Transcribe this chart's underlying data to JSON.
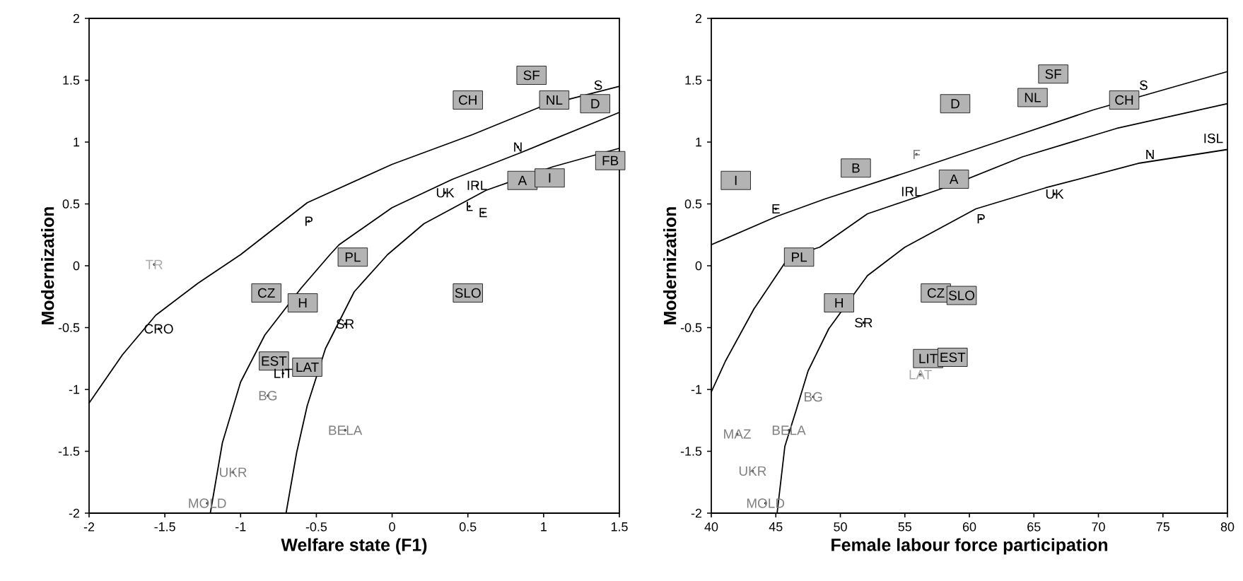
{
  "chart_data": [
    {
      "type": "scatter",
      "xlabel": "Welfare state (F1)",
      "ylabel": "Modernization",
      "xlim": [
        -2,
        1.5
      ],
      "ylim": [
        -2,
        2
      ],
      "xticks": [
        -2,
        -1.5,
        -1,
        -0.5,
        0,
        0.5,
        1,
        1.5
      ],
      "yticks": [
        -2,
        -1.5,
        -1,
        -0.5,
        0,
        0.5,
        1,
        1.5,
        2
      ],
      "series": [
        {
          "type": "line",
          "color": "#000000",
          "line_style": "solid",
          "marker": "none",
          "x": [
            -2,
            -1.78,
            -1.56,
            -1.28,
            -1.0,
            -0.56,
            0.0,
            0.53,
            0.99,
            1.5
          ],
          "values": [
            -1.11,
            -0.72,
            -0.4,
            -0.14,
            0.09,
            0.51,
            0.82,
            1.06,
            1.29,
            1.45
          ]
        },
        {
          "type": "line",
          "color": "#000000",
          "line_style": "solid",
          "marker": "none",
          "x": [
            -1.2,
            -1.12,
            -1.0,
            -0.84,
            -0.6,
            -0.41,
            -0.35,
            0.0,
            0.4,
            0.84,
            1.5
          ],
          "values": [
            -2,
            -1.43,
            -0.94,
            -0.56,
            -0.18,
            0.09,
            0.17,
            0.47,
            0.7,
            0.91,
            1.24
          ]
        },
        {
          "type": "line",
          "color": "#000000",
          "line_style": "solid",
          "marker": "none",
          "x": [
            -0.7,
            -0.63,
            -0.56,
            -0.44,
            -0.25,
            -0.03,
            0.21,
            0.62,
            1.06,
            1.5
          ],
          "values": [
            -2,
            -1.51,
            -1.13,
            -0.67,
            -0.21,
            0.09,
            0.34,
            0.61,
            0.8,
            0.95
          ]
        },
        {
          "type": "scatter",
          "marker": "square",
          "color": "#b3b3b3",
          "value_labels": [
            "SF",
            "CH",
            "NL",
            "D",
            "FB",
            "A",
            "I",
            "PL",
            "CZ",
            "H",
            "SLO",
            "EST",
            "LAT"
          ],
          "x": [
            0.92,
            0.5,
            1.07,
            1.34,
            1.44,
            0.86,
            1.04,
            -0.26,
            -0.83,
            -0.59,
            0.5,
            -0.78,
            -0.56
          ],
          "values": [
            1.54,
            1.34,
            1.34,
            1.31,
            0.85,
            0.69,
            0.71,
            0.07,
            -0.22,
            -0.3,
            -0.22,
            -0.77,
            -0.82
          ]
        },
        {
          "type": "scatter",
          "marker": "circle",
          "color": "#000000",
          "value_labels": [
            "S",
            "N",
            "UK",
            "IRL",
            "L",
            "E",
            "P",
            "CRO",
            "SR",
            "LIT"
          ],
          "x": [
            1.36,
            0.83,
            0.35,
            0.56,
            0.51,
            0.6,
            -0.55,
            -1.54,
            -0.31,
            -0.72
          ],
          "values": [
            1.46,
            0.96,
            0.59,
            0.65,
            0.48,
            0.43,
            0.36,
            -0.51,
            -0.47,
            -0.87
          ]
        },
        {
          "type": "scatter",
          "marker": "circle",
          "color": "#808080",
          "value_labels": [
            "BG",
            "BELA",
            "UKR",
            "MOLD"
          ],
          "x": [
            -0.82,
            -0.31,
            -1.05,
            -1.22
          ],
          "values": [
            -1.05,
            -1.33,
            -1.67,
            -1.92
          ]
        },
        {
          "type": "scatter",
          "marker": "circle",
          "color": "#aaaaaa",
          "value_labels": [
            "TR"
          ],
          "x": [
            -1.57
          ],
          "values": [
            0.01
          ]
        }
      ]
    },
    {
      "type": "scatter",
      "xlabel": "Female labour force participation",
      "ylabel": "Modernization",
      "xlim": [
        40,
        80
      ],
      "ylim": [
        -2,
        2
      ],
      "xticks": [
        40,
        45,
        50,
        55,
        60,
        65,
        70,
        75,
        80
      ],
      "yticks": [
        -2,
        -1.5,
        -1,
        -0.5,
        0,
        0.5,
        1,
        1.5,
        2
      ],
      "series": [
        {
          "type": "line",
          "color": "#000000",
          "line_style": "solid",
          "marker": "none",
          "x": [
            40,
            45.1,
            48.8,
            55.0,
            63.0,
            69.6,
            80
          ],
          "values": [
            0.17,
            0.4,
            0.54,
            0.75,
            1.03,
            1.26,
            1.57
          ]
        },
        {
          "type": "line",
          "color": "#000000",
          "line_style": "solid",
          "marker": "none",
          "x": [
            40,
            41.1,
            43.3,
            46.0,
            48.4,
            52.1,
            58.6,
            64.1,
            71.4,
            80
          ],
          "values": [
            -1.02,
            -0.77,
            -0.35,
            0.07,
            0.15,
            0.42,
            0.65,
            0.88,
            1.11,
            1.31
          ]
        },
        {
          "type": "line",
          "color": "#000000",
          "line_style": "solid",
          "marker": "none",
          "x": [
            45.1,
            45.7,
            46.6,
            47.5,
            49.1,
            52.1,
            55.0,
            60.5,
            65.9,
            73.2,
            80
          ],
          "values": [
            -2,
            -1.46,
            -1.16,
            -0.85,
            -0.51,
            -0.08,
            0.15,
            0.46,
            0.63,
            0.83,
            0.94
          ]
        },
        {
          "type": "scatter",
          "marker": "square",
          "color": "#b3b3b3",
          "value_labels": [
            "SF",
            "D",
            "NL",
            "CH",
            "I",
            "B",
            "A",
            "PL",
            "CZ",
            "SLO",
            "H",
            "LIT",
            "EST"
          ],
          "x": [
            66.5,
            58.9,
            64.9,
            72.0,
            41.9,
            51.2,
            58.8,
            46.8,
            57.4,
            59.4,
            49.9,
            56.8,
            58.7
          ],
          "values": [
            1.55,
            1.31,
            1.36,
            1.34,
            0.69,
            0.79,
            0.7,
            0.07,
            -0.22,
            -0.24,
            -0.3,
            -0.75,
            -0.74
          ]
        },
        {
          "type": "scatter",
          "marker": "circle",
          "color": "#000000",
          "value_labels": [
            "S",
            "ISL",
            "N",
            "IRL",
            "UK",
            "E",
            "P",
            "SR"
          ],
          "x": [
            73.5,
            78.9,
            74.0,
            55.5,
            66.6,
            45.0,
            60.9,
            51.8
          ],
          "values": [
            1.46,
            1.03,
            0.9,
            0.6,
            0.58,
            0.46,
            0.38,
            -0.46
          ]
        },
        {
          "type": "scatter",
          "marker": "circle",
          "color": "#808080",
          "value_labels": [
            "F",
            "BG",
            "MAZ",
            "BELA",
            "UKR",
            "MOLD"
          ],
          "x": [
            55.9,
            47.9,
            42.0,
            46.0,
            43.2,
            44.2
          ],
          "values": [
            0.9,
            -1.06,
            -1.36,
            -1.33,
            -1.66,
            -1.92
          ]
        },
        {
          "type": "scatter",
          "marker": "circle",
          "color": "#aaaaaa",
          "value_labels": [
            "LAT"
          ],
          "x": [
            56.2
          ],
          "values": [
            -0.88
          ]
        }
      ]
    }
  ]
}
